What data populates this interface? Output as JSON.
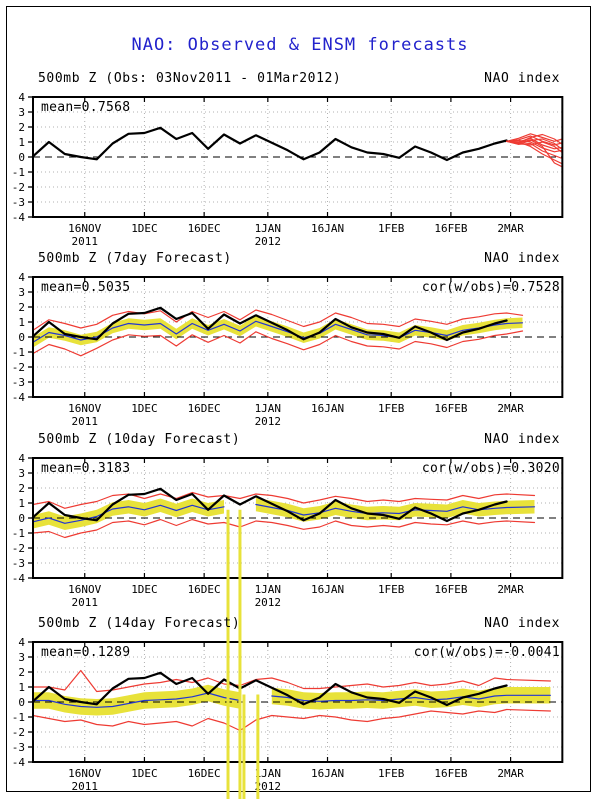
{
  "window": {
    "title": "NAO: Observed & ENSM forecasts"
  },
  "colors": {
    "title_blue": "#2222cc",
    "obs_black": "#000000",
    "ens_red": "#ee3b33",
    "mean_blue": "#2336d0",
    "band_yellow": "#e8e23a",
    "grid_gray": "#b0b0b0",
    "text_black": "#000000",
    "background": "#ffffff"
  },
  "chart_data": {
    "type": "line",
    "title": "NAO: Observed & ENSM forecasts",
    "ylabel": "NAO index",
    "ylim": [
      -4,
      4
    ],
    "y_ticks": [
      4,
      3,
      2,
      1,
      0,
      -1,
      -2,
      -3,
      -4
    ],
    "x_start_date": "03Nov2011",
    "x_ticks": [
      {
        "day": 13,
        "label": "16NOV",
        "sub": "2011"
      },
      {
        "day": 28,
        "label": "1DEC"
      },
      {
        "day": 43,
        "label": "16DEC"
      },
      {
        "day": 59,
        "label": "1JAN",
        "sub": "2012"
      },
      {
        "day": 74,
        "label": "16JAN"
      },
      {
        "day": 90,
        "label": "1FEB"
      },
      {
        "day": 105,
        "label": "16FEB"
      },
      {
        "day": 120,
        "label": "2MAR"
      }
    ],
    "obs": {
      "name": "Observed NAO index (black)",
      "days": [
        0,
        4,
        8,
        12,
        16,
        20,
        24,
        28,
        32,
        36,
        40,
        44,
        48,
        52,
        56,
        60,
        64,
        68,
        72,
        76,
        80,
        84,
        88,
        92,
        96,
        100,
        104,
        108,
        112,
        116,
        119
      ],
      "values": [
        0.05,
        1.0,
        0.2,
        0.0,
        -0.15,
        0.9,
        1.55,
        1.6,
        1.95,
        1.2,
        1.6,
        0.55,
        1.5,
        0.9,
        1.45,
        0.95,
        0.45,
        -0.15,
        0.3,
        1.2,
        0.65,
        0.3,
        0.2,
        -0.05,
        0.7,
        0.3,
        -0.2,
        0.3,
        0.55,
        0.9,
        1.1
      ]
    },
    "panels": [
      {
        "id": "observed",
        "header_left": "500mb Z (Obs: 03Nov2011 - 01Mar2012)",
        "header_right": "NAO index",
        "mean_label": "mean=0.7568",
        "ensemble": {
          "name": "ENSM member forecasts beyond 01Mar (red)",
          "days": [
            119,
            122,
            125,
            128,
            131,
            133
          ],
          "members": [
            [
              1.05,
              1.25,
              1.55,
              1.3,
              1.05,
              1.2
            ],
            [
              1.05,
              0.95,
              1.3,
              1.5,
              1.2,
              0.85
            ],
            [
              1.05,
              1.15,
              1.4,
              1.05,
              0.8,
              0.95
            ],
            [
              1.05,
              0.85,
              1.1,
              1.2,
              0.9,
              0.5
            ],
            [
              1.05,
              1.0,
              1.25,
              0.8,
              0.55,
              0.65
            ],
            [
              1.05,
              0.9,
              0.8,
              1.0,
              0.7,
              0.3
            ],
            [
              1.05,
              1.1,
              1.0,
              0.6,
              0.35,
              0.45
            ],
            [
              1.05,
              0.85,
              0.9,
              0.4,
              0.1,
              -0.1
            ],
            [
              1.05,
              1.0,
              0.7,
              0.2,
              -0.2,
              -0.45
            ],
            [
              1.05,
              0.95,
              1.15,
              0.7,
              -0.4,
              -0.65
            ]
          ]
        }
      },
      {
        "id": "forecast-7day",
        "header_left": "500mb Z (7day Forecast)",
        "header_right": "NAO index",
        "mean_label": "mean=0.5035",
        "cor_label": "cor(w/obs)=0.7528",
        "forecast": {
          "days": [
            0,
            4,
            8,
            12,
            16,
            20,
            24,
            28,
            32,
            36,
            40,
            44,
            48,
            52,
            56,
            60,
            64,
            68,
            72,
            76,
            80,
            84,
            88,
            92,
            96,
            100,
            104,
            108,
            112,
            116,
            119,
            123
          ],
          "mean": [
            -0.35,
            0.3,
            0.1,
            -0.2,
            0.0,
            0.6,
            0.9,
            0.8,
            0.9,
            0.2,
            0.9,
            0.45,
            0.85,
            0.4,
            1.05,
            0.7,
            0.35,
            -0.05,
            0.25,
            0.85,
            0.5,
            0.15,
            0.1,
            -0.05,
            0.45,
            0.3,
            0.1,
            0.45,
            0.6,
            0.8,
            0.9,
            0.95
          ],
          "band_halfwidth": 0.35,
          "env_hi": [
            0.45,
            1.15,
            0.9,
            0.6,
            0.85,
            1.45,
            1.7,
            1.55,
            1.75,
            1.0,
            1.7,
            1.3,
            1.7,
            1.15,
            1.8,
            1.5,
            1.1,
            0.7,
            1.0,
            1.6,
            1.3,
            0.9,
            0.85,
            0.7,
            1.2,
            1.05,
            0.85,
            1.2,
            1.35,
            1.55,
            1.6,
            1.45
          ],
          "env_lo": [
            -1.1,
            -0.5,
            -0.8,
            -1.25,
            -0.75,
            -0.2,
            0.15,
            0.05,
            0.1,
            -0.6,
            0.15,
            -0.35,
            0.1,
            -0.4,
            0.35,
            -0.1,
            -0.45,
            -0.85,
            -0.5,
            0.1,
            -0.3,
            -0.6,
            -0.65,
            -0.8,
            -0.3,
            -0.45,
            -0.7,
            -0.3,
            -0.15,
            0.1,
            0.2,
            0.4
          ]
        }
      },
      {
        "id": "forecast-10day",
        "header_left": "500mb Z (10day Forecast)",
        "header_right": "NAO index",
        "mean_label": "mean=0.3183",
        "cor_label": "cor(w/obs)=0.3020",
        "forecast": {
          "days": [
            0,
            4,
            8,
            12,
            16,
            20,
            24,
            28,
            32,
            36,
            40,
            44,
            48,
            52,
            56,
            60,
            64,
            68,
            72,
            76,
            80,
            84,
            88,
            92,
            96,
            100,
            104,
            108,
            112,
            116,
            119,
            126
          ],
          "mean": [
            -0.25,
            0.0,
            -0.35,
            -0.15,
            0.1,
            0.6,
            0.75,
            0.55,
            0.85,
            0.5,
            0.85,
            0.55,
            0.75,
            0.5,
            0.9,
            0.7,
            0.5,
            0.2,
            0.35,
            0.65,
            0.45,
            0.3,
            0.35,
            0.3,
            0.55,
            0.5,
            0.45,
            0.75,
            0.55,
            0.65,
            0.7,
            0.75
          ],
          "band_halfwidth": 0.45,
          "env_hi": [
            0.9,
            1.1,
            0.65,
            0.9,
            1.1,
            1.5,
            1.6,
            1.3,
            1.6,
            1.3,
            1.7,
            1.4,
            1.5,
            1.3,
            1.6,
            1.5,
            1.3,
            1.0,
            1.2,
            1.45,
            1.3,
            1.1,
            1.2,
            1.1,
            1.3,
            1.25,
            1.2,
            1.5,
            1.3,
            1.55,
            1.6,
            1.5
          ],
          "env_lo": [
            -1.0,
            -0.9,
            -1.3,
            -1.0,
            -0.8,
            -0.3,
            -0.2,
            -0.45,
            -0.1,
            -0.5,
            -0.1,
            -0.4,
            -0.3,
            -0.6,
            -0.2,
            -0.3,
            -0.5,
            -0.75,
            -0.6,
            -0.2,
            -0.5,
            -0.6,
            -0.5,
            -0.6,
            -0.3,
            -0.4,
            -0.45,
            -0.2,
            -0.4,
            -0.25,
            -0.2,
            -0.3
          ],
          "gap_days": [
            48.5,
            53
          ],
          "dropout_days": [
            49,
            52
          ],
          "dropout_from": 0.55,
          "dropout_to": -18.8
        }
      },
      {
        "id": "forecast-14day",
        "header_left": "500mb Z (14day Forecast)",
        "header_right": "NAO index",
        "mean_label": "mean=0.1289",
        "cor_label": "cor(w/obs)=-0.0041",
        "forecast": {
          "days": [
            0,
            4,
            8,
            12,
            16,
            20,
            24,
            28,
            32,
            36,
            40,
            44,
            48,
            52,
            56,
            60,
            64,
            68,
            72,
            76,
            80,
            84,
            88,
            92,
            96,
            100,
            104,
            108,
            112,
            116,
            119,
            130
          ],
          "mean": [
            0.1,
            0.1,
            -0.15,
            -0.3,
            -0.35,
            -0.3,
            -0.1,
            0.1,
            0.15,
            0.2,
            0.35,
            0.6,
            0.3,
            0.1,
            0.25,
            0.4,
            0.3,
            0.1,
            0.05,
            0.1,
            0.1,
            0.15,
            0.1,
            0.2,
            0.3,
            0.15,
            0.2,
            0.35,
            0.2,
            0.4,
            0.45,
            0.45
          ],
          "band_halfwidth": 0.55,
          "env_hi": [
            1.0,
            1.0,
            0.8,
            2.1,
            0.7,
            0.8,
            1.0,
            1.2,
            1.3,
            1.5,
            1.3,
            1.6,
            1.2,
            1.1,
            1.5,
            1.6,
            1.3,
            0.9,
            0.9,
            1.0,
            1.1,
            1.2,
            1.0,
            1.1,
            1.3,
            1.1,
            1.2,
            1.4,
            1.1,
            1.6,
            1.5,
            1.4
          ],
          "env_lo": [
            -0.9,
            -1.1,
            -1.3,
            -1.2,
            -1.5,
            -1.6,
            -1.3,
            -1.5,
            -1.4,
            -1.3,
            -1.6,
            -1.1,
            -1.4,
            -1.9,
            -1.2,
            -0.9,
            -1.0,
            -1.1,
            -0.9,
            -1.0,
            -1.2,
            -1.3,
            -1.1,
            -1.0,
            -0.8,
            -0.6,
            -0.7,
            -0.8,
            -0.6,
            -0.7,
            -0.5,
            -0.6
          ],
          "gap_days": [
            52.5,
            57
          ],
          "dropout_days": [
            53,
            56.5
          ],
          "dropout_from": 0.5,
          "dropout_to": -6.6
        }
      }
    ]
  }
}
